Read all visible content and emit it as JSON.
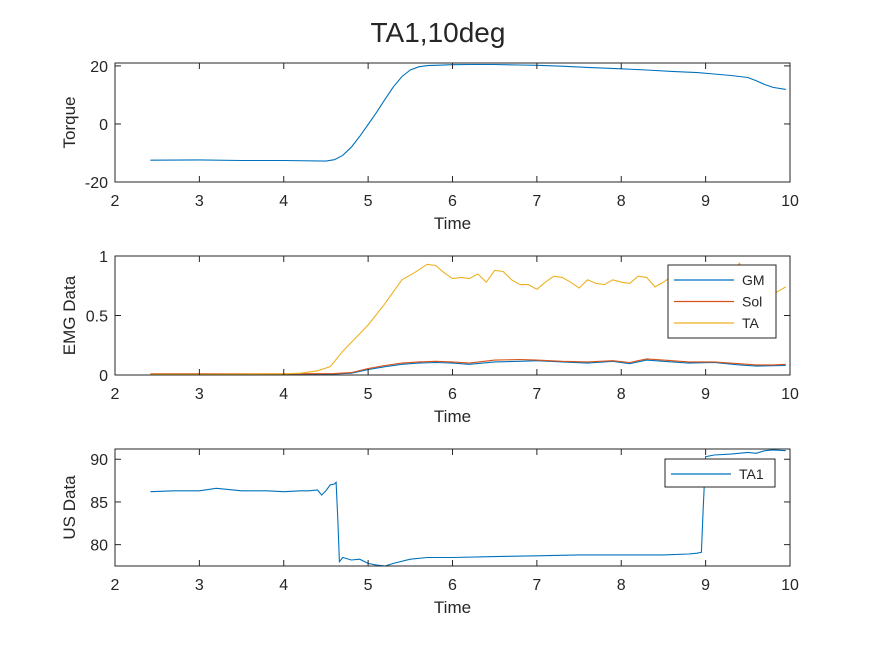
{
  "figure": {
    "title": "TA1,10deg"
  },
  "chart_data": [
    {
      "type": "line",
      "xlabel": "Time",
      "ylabel": "Torque",
      "xlim": [
        2,
        10
      ],
      "ylim": [
        -20,
        21
      ],
      "xticks": [
        2,
        3,
        4,
        5,
        6,
        7,
        8,
        9,
        10
      ],
      "yticks": [
        -20,
        0,
        20
      ],
      "grid": false,
      "legend": null,
      "series": [
        {
          "color": "#0072BD",
          "x": [
            2.42,
            3.0,
            3.5,
            4.0,
            4.5,
            4.6,
            4.7,
            4.8,
            4.9,
            5.0,
            5.1,
            5.2,
            5.3,
            5.4,
            5.5,
            5.6,
            5.7,
            5.8,
            6.0,
            6.2,
            6.5,
            6.8,
            7.0,
            7.3,
            7.6,
            8.0,
            8.3,
            8.6,
            8.9,
            9.1,
            9.3,
            9.5,
            9.6,
            9.7,
            9.8,
            9.95
          ],
          "y": [
            -12.5,
            -12.4,
            -12.6,
            -12.6,
            -12.8,
            -12.3,
            -10.8,
            -8.0,
            -4.3,
            -0.2,
            4.0,
            8.5,
            12.8,
            16.3,
            18.6,
            19.7,
            20.1,
            20.2,
            20.4,
            20.5,
            20.5,
            20.3,
            20.2,
            19.9,
            19.5,
            19.0,
            18.6,
            18.1,
            17.7,
            17.2,
            16.7,
            16.0,
            14.9,
            13.6,
            12.6,
            11.9
          ]
        }
      ]
    },
    {
      "type": "line",
      "xlabel": "Time",
      "ylabel": "EMG Data",
      "xlim": [
        2,
        10
      ],
      "ylim": [
        0,
        1
      ],
      "xticks": [
        2,
        3,
        4,
        5,
        6,
        7,
        8,
        9,
        10
      ],
      "yticks": [
        0,
        0.5,
        1
      ],
      "grid": false,
      "legend_position": "top-right",
      "series": [
        {
          "name": "GM",
          "color": "#0072BD",
          "x": [
            2.42,
            3.0,
            4.0,
            4.6,
            4.8,
            5.0,
            5.2,
            5.4,
            5.6,
            5.8,
            6.0,
            6.2,
            6.5,
            6.8,
            7.0,
            7.3,
            7.6,
            7.9,
            8.1,
            8.3,
            8.5,
            8.8,
            9.1,
            9.4,
            9.6,
            9.8,
            9.95
          ],
          "y": [
            0.005,
            0.005,
            0.006,
            0.008,
            0.015,
            0.045,
            0.07,
            0.09,
            0.1,
            0.105,
            0.1,
            0.09,
            0.11,
            0.115,
            0.12,
            0.11,
            0.1,
            0.115,
            0.095,
            0.125,
            0.115,
            0.1,
            0.105,
            0.085,
            0.075,
            0.078,
            0.08
          ]
        },
        {
          "name": "Sol",
          "color": "#D95319",
          "x": [
            2.42,
            3.0,
            4.0,
            4.6,
            4.8,
            5.0,
            5.2,
            5.4,
            5.6,
            5.8,
            6.0,
            6.2,
            6.5,
            6.8,
            7.0,
            7.3,
            7.6,
            7.9,
            8.1,
            8.3,
            8.5,
            8.8,
            9.1,
            9.4,
            9.6,
            9.8,
            9.95
          ],
          "y": [
            0.01,
            0.01,
            0.01,
            0.012,
            0.02,
            0.055,
            0.08,
            0.1,
            0.11,
            0.115,
            0.11,
            0.1,
            0.125,
            0.13,
            0.125,
            0.115,
            0.11,
            0.12,
            0.105,
            0.135,
            0.125,
            0.11,
            0.11,
            0.095,
            0.085,
            0.085,
            0.09
          ]
        },
        {
          "name": "TA",
          "color": "#EDB120",
          "x": [
            2.42,
            3.0,
            4.0,
            4.2,
            4.4,
            4.55,
            4.7,
            4.85,
            5.0,
            5.2,
            5.4,
            5.55,
            5.7,
            5.8,
            5.9,
            6.0,
            6.1,
            6.2,
            6.3,
            6.4,
            6.5,
            6.6,
            6.7,
            6.8,
            6.9,
            7.0,
            7.1,
            7.2,
            7.3,
            7.4,
            7.5,
            7.6,
            7.7,
            7.8,
            7.9,
            8.0,
            8.1,
            8.2,
            8.3,
            8.4,
            8.5,
            8.6,
            8.7,
            8.8,
            8.9,
            9.0,
            9.1,
            9.2,
            9.3,
            9.4,
            9.5,
            9.6,
            9.7,
            9.8,
            9.9,
            9.95
          ],
          "y": [
            0.005,
            0.005,
            0.01,
            0.015,
            0.035,
            0.07,
            0.2,
            0.31,
            0.42,
            0.6,
            0.8,
            0.86,
            0.93,
            0.92,
            0.86,
            0.81,
            0.82,
            0.81,
            0.85,
            0.78,
            0.88,
            0.87,
            0.8,
            0.76,
            0.76,
            0.72,
            0.78,
            0.83,
            0.82,
            0.78,
            0.73,
            0.8,
            0.77,
            0.76,
            0.8,
            0.78,
            0.77,
            0.83,
            0.82,
            0.74,
            0.78,
            0.83,
            0.79,
            0.74,
            0.88,
            0.77,
            0.84,
            0.79,
            0.83,
            0.94,
            0.83,
            0.72,
            0.62,
            0.68,
            0.72,
            0.74
          ]
        }
      ]
    },
    {
      "type": "line",
      "xlabel": "Time",
      "ylabel": "US Data",
      "xlim": [
        2,
        10
      ],
      "ylim": [
        77.5,
        91.2
      ],
      "xticks": [
        2,
        3,
        4,
        5,
        6,
        7,
        8,
        9,
        10
      ],
      "yticks": [
        80,
        85,
        90
      ],
      "grid": false,
      "legend_position": "top-right",
      "series": [
        {
          "name": "TA1",
          "color": "#0072BD",
          "x": [
            2.42,
            2.7,
            3.0,
            3.2,
            3.5,
            3.8,
            4.0,
            4.2,
            4.3,
            4.4,
            4.45,
            4.5,
            4.55,
            4.6,
            4.62,
            4.64,
            4.66,
            4.7,
            4.8,
            4.9,
            5.0,
            5.1,
            5.2,
            5.3,
            5.5,
            5.7,
            6.0,
            6.5,
            7.0,
            7.5,
            8.0,
            8.5,
            8.8,
            8.9,
            8.95,
            8.97,
            9.0,
            9.1,
            9.3,
            9.5,
            9.6,
            9.7,
            9.8,
            9.95
          ],
          "y": [
            86.2,
            86.3,
            86.3,
            86.6,
            86.3,
            86.3,
            86.2,
            86.3,
            86.3,
            86.4,
            85.8,
            86.3,
            87.0,
            87.1,
            87.3,
            83.0,
            78.0,
            78.5,
            78.2,
            78.3,
            77.8,
            77.6,
            77.5,
            77.8,
            78.3,
            78.5,
            78.5,
            78.6,
            78.7,
            78.8,
            78.8,
            78.8,
            78.9,
            79.0,
            79.1,
            84.0,
            90.3,
            90.5,
            90.6,
            90.8,
            90.7,
            91.0,
            91.1,
            91.0
          ]
        }
      ]
    }
  ]
}
